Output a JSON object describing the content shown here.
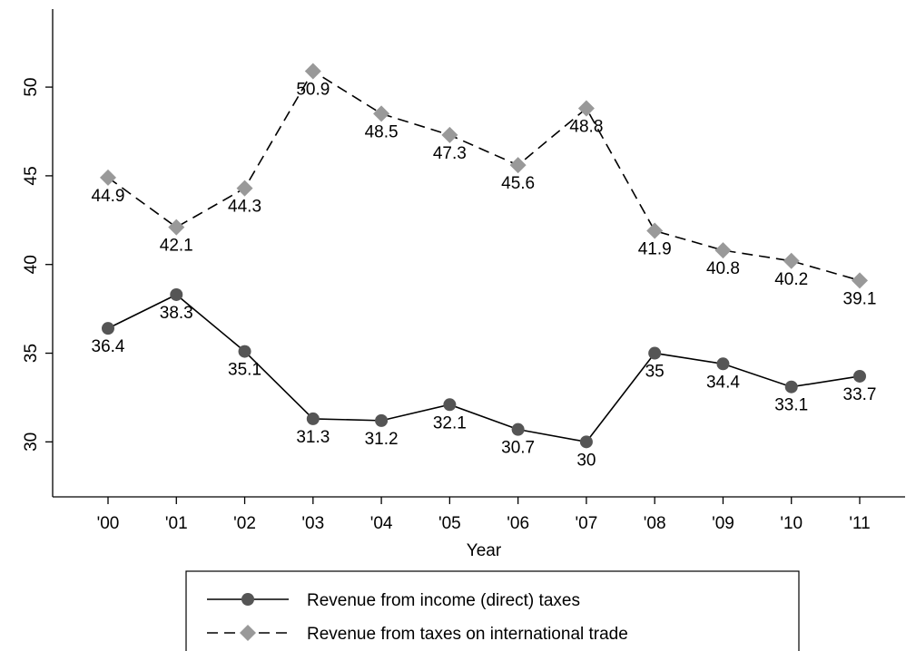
{
  "chart_data": {
    "type": "line",
    "x_label": "Year",
    "categories": [
      "'00",
      "'01",
      "'02",
      "'03",
      "'04",
      "'05",
      "'06",
      "'07",
      "'08",
      "'09",
      "'10",
      "'11"
    ],
    "series": [
      {
        "name": "Revenue from income (direct) taxes",
        "color": "#555555",
        "line_color": "#000000",
        "marker": "circle",
        "dash": "solid",
        "values": [
          36.4,
          38.3,
          35.1,
          31.3,
          31.2,
          32.1,
          30.7,
          30,
          35,
          34.4,
          33.1,
          33.7
        ]
      },
      {
        "name": "Revenue from taxes on international trade",
        "color": "#999999",
        "line_color": "#000000",
        "marker": "diamond",
        "dash": "dashed",
        "values": [
          44.9,
          42.1,
          44.3,
          50.9,
          48.5,
          47.3,
          45.6,
          48.8,
          41.9,
          40.8,
          40.2,
          39.1
        ]
      }
    ],
    "ylim": [
      26.9,
      54.4
    ],
    "yticks": [
      30,
      35,
      40,
      45,
      50
    ],
    "grid": false
  }
}
